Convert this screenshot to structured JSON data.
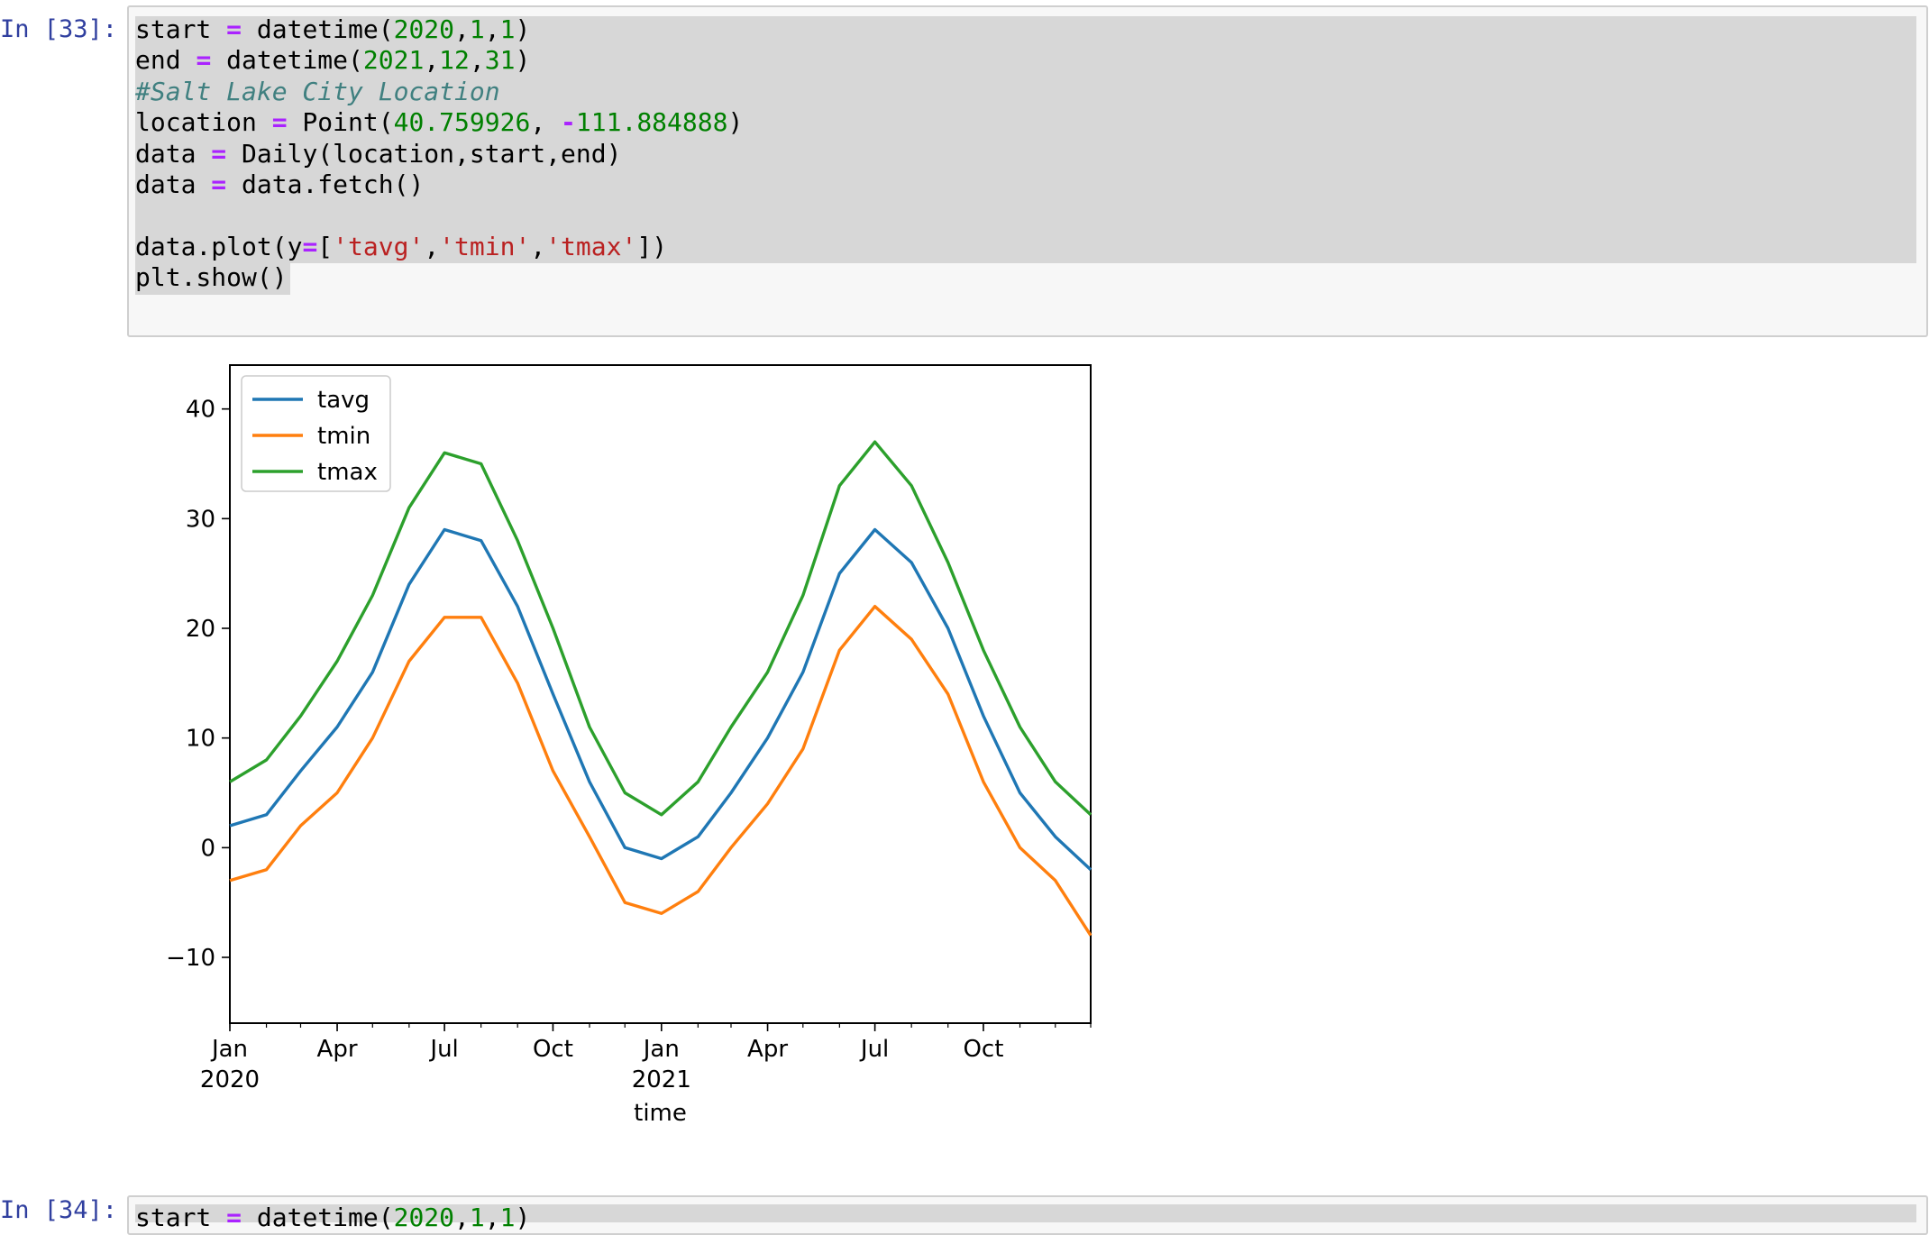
{
  "cell_33": {
    "prompt": "In [33]:",
    "code_lines": [
      [
        [
          "t",
          "start "
        ],
        [
          "op",
          "="
        ],
        [
          "t",
          " datetime("
        ],
        [
          "num",
          "2020"
        ],
        [
          "t",
          ","
        ],
        [
          "num",
          "1"
        ],
        [
          "t",
          ","
        ],
        [
          "num",
          "1"
        ],
        [
          "t",
          ")"
        ]
      ],
      [
        [
          "t",
          "end "
        ],
        [
          "op",
          "="
        ],
        [
          "t",
          " datetime("
        ],
        [
          "num",
          "2021"
        ],
        [
          "t",
          ","
        ],
        [
          "num",
          "12"
        ],
        [
          "t",
          ","
        ],
        [
          "num",
          "31"
        ],
        [
          "t",
          ")"
        ]
      ],
      [
        [
          "com",
          "#Salt Lake City Location"
        ]
      ],
      [
        [
          "t",
          "location "
        ],
        [
          "op",
          "="
        ],
        [
          "t",
          " Point("
        ],
        [
          "num",
          "40.759926"
        ],
        [
          "t",
          ", "
        ],
        [
          "op",
          "-"
        ],
        [
          "num",
          "111.884888"
        ],
        [
          "t",
          ")"
        ]
      ],
      [
        [
          "t",
          "data "
        ],
        [
          "op",
          "="
        ],
        [
          "t",
          " Daily(location,start,end)"
        ]
      ],
      [
        [
          "t",
          "data "
        ],
        [
          "op",
          "="
        ],
        [
          "t",
          " data.fetch()"
        ]
      ],
      [
        [
          "t",
          ""
        ]
      ],
      [
        [
          "t",
          "data.plot(y"
        ],
        [
          "op",
          "="
        ],
        [
          "t",
          "["
        ],
        [
          "str",
          "'tavg'"
        ],
        [
          "t",
          ","
        ],
        [
          "str",
          "'tmin'"
        ],
        [
          "t",
          ","
        ],
        [
          "str",
          "'tmax'"
        ],
        [
          "t",
          "])"
        ]
      ],
      [
        [
          "t",
          "plt.show()"
        ]
      ]
    ]
  },
  "cell_34": {
    "prompt": "In [34]:",
    "code_first_line": [
      [
        "t",
        "start "
      ],
      [
        "op",
        "="
      ],
      [
        "t",
        " datetime("
      ],
      [
        "num",
        "2020"
      ],
      [
        "t",
        ","
      ],
      [
        "num",
        "1"
      ],
      [
        "t",
        ","
      ],
      [
        "num",
        "1"
      ],
      [
        "t",
        ")"
      ]
    ]
  },
  "colors": {
    "tavg": "#1f77b4",
    "tmin": "#ff7f0e",
    "tmax": "#2ca02c",
    "prompt": "#303f9f"
  },
  "chart_data": {
    "type": "line",
    "x_type": "date",
    "x_range": [
      "2020-01-01",
      "2021-12-31"
    ],
    "xlabel": "time",
    "ylabel": "",
    "ylim": [
      -16,
      44
    ],
    "y_ticks": [
      -10,
      0,
      10,
      20,
      30,
      40
    ],
    "y_tick_labels": [
      "−10",
      "0",
      "10",
      "20",
      "30",
      "40"
    ],
    "x_ticks": [
      {
        "date": "2020-01-01",
        "label": "Jan",
        "sub": "2020"
      },
      {
        "date": "2020-04-01",
        "label": "Apr",
        "sub": ""
      },
      {
        "date": "2020-07-01",
        "label": "Jul",
        "sub": ""
      },
      {
        "date": "2020-10-01",
        "label": "Oct",
        "sub": ""
      },
      {
        "date": "2021-01-01",
        "label": "Jan",
        "sub": "2021"
      },
      {
        "date": "2021-04-01",
        "label": "Apr",
        "sub": ""
      },
      {
        "date": "2021-07-01",
        "label": "Jul",
        "sub": ""
      },
      {
        "date": "2021-10-01",
        "label": "Oct",
        "sub": ""
      }
    ],
    "legend_position": "upper-left",
    "legend": [
      "tavg",
      "tmin",
      "tmax"
    ],
    "series": [
      {
        "name": "tavg",
        "color": "#1f77b4",
        "x": [
          "2020-01-01",
          "2020-02-01",
          "2020-03-01",
          "2020-04-01",
          "2020-05-01",
          "2020-06-01",
          "2020-07-01",
          "2020-08-01",
          "2020-09-01",
          "2020-10-01",
          "2020-11-01",
          "2020-12-01",
          "2021-01-01",
          "2021-02-01",
          "2021-03-01",
          "2021-04-01",
          "2021-05-01",
          "2021-06-01",
          "2021-07-01",
          "2021-08-01",
          "2021-09-01",
          "2021-10-01",
          "2021-11-01",
          "2021-12-01",
          "2021-12-31"
        ],
        "y": [
          2,
          3,
          7,
          11,
          16,
          24,
          29,
          28,
          22,
          14,
          6,
          0,
          -1,
          1,
          5,
          10,
          16,
          25,
          29,
          26,
          20,
          12,
          5,
          1,
          -2
        ]
      },
      {
        "name": "tmin",
        "color": "#ff7f0e",
        "x": [
          "2020-01-01",
          "2020-02-01",
          "2020-03-01",
          "2020-04-01",
          "2020-05-01",
          "2020-06-01",
          "2020-07-01",
          "2020-08-01",
          "2020-09-01",
          "2020-10-01",
          "2020-11-01",
          "2020-12-01",
          "2021-01-01",
          "2021-02-01",
          "2021-03-01",
          "2021-04-01",
          "2021-05-01",
          "2021-06-01",
          "2021-07-01",
          "2021-08-01",
          "2021-09-01",
          "2021-10-01",
          "2021-11-01",
          "2021-12-01",
          "2021-12-31"
        ],
        "y": [
          -3,
          -2,
          2,
          5,
          10,
          17,
          21,
          21,
          15,
          7,
          1,
          -5,
          -6,
          -4,
          0,
          4,
          9,
          18,
          22,
          19,
          14,
          6,
          0,
          -3,
          -8
        ]
      },
      {
        "name": "tmax",
        "color": "#2ca02c",
        "x": [
          "2020-01-01",
          "2020-02-01",
          "2020-03-01",
          "2020-04-01",
          "2020-05-01",
          "2020-06-01",
          "2020-07-01",
          "2020-08-01",
          "2020-09-01",
          "2020-10-01",
          "2020-11-01",
          "2020-12-01",
          "2021-01-01",
          "2021-02-01",
          "2021-03-01",
          "2021-04-01",
          "2021-05-01",
          "2021-06-01",
          "2021-07-01",
          "2021-08-01",
          "2021-09-01",
          "2021-10-01",
          "2021-11-01",
          "2021-12-01",
          "2021-12-31"
        ],
        "y": [
          6,
          8,
          12,
          17,
          23,
          31,
          36,
          35,
          28,
          20,
          11,
          5,
          3,
          6,
          11,
          16,
          23,
          33,
          37,
          33,
          26,
          18,
          11,
          6,
          3
        ]
      }
    ]
  }
}
